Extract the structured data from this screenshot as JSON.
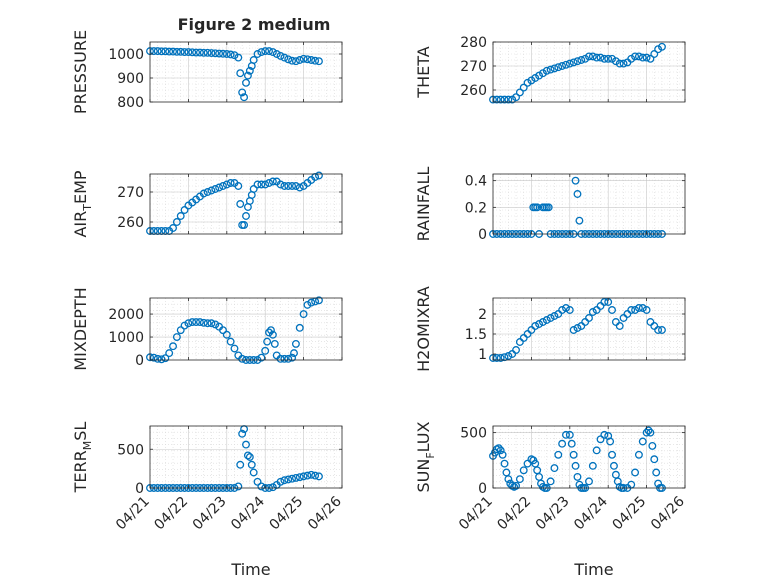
{
  "title": "Figure 2 medium",
  "xlabel": "Time",
  "x_tick_labels": [
    "04/21",
    "04/22",
    "04/23",
    "04/24",
    "04/25",
    "04/26"
  ],
  "marker_color": "#0072BD",
  "chart_data": [
    {
      "type": "scatter",
      "ylabel": "PRESSURE",
      "ylim": [
        800,
        1050
      ],
      "yticks": [
        800,
        900,
        1000
      ],
      "xlim": [
        0,
        5
      ],
      "grid": "major+minor",
      "x": [
        0.0,
        0.1,
        0.2,
        0.3,
        0.4,
        0.5,
        0.6,
        0.7,
        0.8,
        0.9,
        1.0,
        1.1,
        1.2,
        1.3,
        1.4,
        1.5,
        1.6,
        1.7,
        1.8,
        1.9,
        2.0,
        2.1,
        2.2,
        2.3,
        2.35,
        2.4,
        2.45,
        2.5,
        2.55,
        2.6,
        2.65,
        2.7,
        2.8,
        2.9,
        3.0,
        3.1,
        3.2,
        3.3,
        3.4,
        3.5,
        3.6,
        3.7,
        3.8,
        3.9,
        4.0,
        4.1,
        4.2,
        4.3,
        4.4
      ],
      "y": [
        1012,
        1012,
        1012,
        1011,
        1011,
        1010,
        1010,
        1009,
        1009,
        1008,
        1008,
        1007,
        1006,
        1006,
        1005,
        1005,
        1004,
        1003,
        1002,
        1001,
        1000,
        998,
        995,
        985,
        920,
        840,
        820,
        880,
        910,
        930,
        950,
        975,
        1000,
        1008,
        1012,
        1012,
        1008,
        1000,
        992,
        985,
        978,
        972,
        970,
        975,
        980,
        978,
        975,
        972,
        970
      ]
    },
    {
      "type": "scatter",
      "ylabel": "THETA",
      "ylim": [
        255,
        280
      ],
      "yticks": [
        260,
        270,
        280
      ],
      "xlim": [
        0,
        5
      ],
      "grid": "major+minor",
      "x": [
        0.0,
        0.1,
        0.2,
        0.3,
        0.4,
        0.5,
        0.6,
        0.7,
        0.8,
        0.9,
        1.0,
        1.1,
        1.2,
        1.3,
        1.4,
        1.5,
        1.6,
        1.7,
        1.8,
        1.9,
        2.0,
        2.1,
        2.2,
        2.3,
        2.4,
        2.5,
        2.6,
        2.7,
        2.8,
        2.9,
        3.0,
        3.1,
        3.2,
        3.3,
        3.4,
        3.5,
        3.6,
        3.7,
        3.8,
        3.9,
        4.0,
        4.1,
        4.2,
        4.3,
        4.4
      ],
      "y": [
        256,
        256,
        256,
        256,
        256,
        256,
        257,
        259,
        261,
        263,
        264,
        265,
        266,
        267,
        268,
        268.5,
        269,
        269.5,
        270,
        270.5,
        271,
        271.5,
        272,
        272.5,
        273,
        274,
        274,
        273.5,
        273.5,
        273,
        273,
        273,
        272,
        271,
        271,
        271.5,
        273,
        274,
        274,
        273.5,
        273.5,
        273,
        275,
        277,
        278
      ]
    },
    {
      "type": "scatter",
      "ylabel": "AIR_TEMP",
      "ylim": [
        256,
        276
      ],
      "yticks": [
        260,
        270
      ],
      "xlim": [
        0,
        5
      ],
      "grid": "major+minor",
      "x": [
        0.0,
        0.1,
        0.2,
        0.3,
        0.4,
        0.5,
        0.6,
        0.7,
        0.8,
        0.9,
        1.0,
        1.1,
        1.2,
        1.3,
        1.4,
        1.5,
        1.6,
        1.7,
        1.8,
        1.9,
        2.0,
        2.1,
        2.2,
        2.3,
        2.35,
        2.4,
        2.45,
        2.5,
        2.55,
        2.6,
        2.65,
        2.7,
        2.8,
        2.9,
        3.0,
        3.1,
        3.2,
        3.3,
        3.4,
        3.5,
        3.6,
        3.7,
        3.8,
        3.9,
        4.0,
        4.1,
        4.2,
        4.3,
        4.4
      ],
      "y": [
        257,
        257,
        257,
        257,
        257,
        257,
        258,
        260,
        262,
        264,
        265.5,
        266.5,
        267.5,
        268.5,
        269.5,
        270,
        270.5,
        271,
        271.5,
        272,
        272.5,
        273,
        273,
        272,
        266,
        259,
        259,
        262,
        265,
        267,
        269,
        271,
        272.5,
        272.5,
        272.5,
        273,
        273.5,
        273.5,
        272.5,
        272,
        272,
        272,
        272,
        271.5,
        272,
        273,
        274,
        275,
        275.5
      ]
    },
    {
      "type": "scatter",
      "ylabel": "RAINFALL",
      "ylim": [
        0,
        0.45
      ],
      "yticks": [
        0,
        0.2,
        0.4
      ],
      "xlim": [
        0,
        5
      ],
      "grid": "major+minor",
      "x": [
        0.0,
        0.1,
        0.2,
        0.3,
        0.4,
        0.5,
        0.6,
        0.7,
        0.8,
        0.9,
        1.0,
        1.05,
        1.1,
        1.15,
        1.2,
        1.3,
        1.35,
        1.4,
        1.45,
        1.5,
        1.6,
        1.7,
        1.8,
        1.9,
        2.0,
        2.1,
        2.15,
        2.2,
        2.25,
        2.3,
        2.4,
        2.5,
        2.6,
        2.7,
        2.8,
        2.9,
        3.0,
        3.1,
        3.2,
        3.3,
        3.4,
        3.5,
        3.6,
        3.7,
        3.8,
        3.9,
        4.0,
        4.1,
        4.2,
        4.3,
        4.4
      ],
      "y": [
        0,
        0,
        0,
        0,
        0,
        0,
        0,
        0,
        0,
        0,
        0,
        0.2,
        0.2,
        0.2,
        0,
        0.2,
        0.2,
        0.2,
        0.2,
        0,
        0,
        0,
        0,
        0,
        0,
        0,
        0.4,
        0.3,
        0.1,
        0,
        0,
        0,
        0,
        0,
        0,
        0,
        0,
        0,
        0,
        0,
        0,
        0,
        0,
        0,
        0,
        0,
        0,
        0,
        0,
        0,
        0
      ]
    },
    {
      "type": "scatter",
      "ylabel": "MIXDEPTH",
      "ylim": [
        0,
        2700
      ],
      "yticks": [
        0,
        1000,
        2000
      ],
      "xlim": [
        0,
        5
      ],
      "grid": "major+minor",
      "x": [
        0.0,
        0.1,
        0.2,
        0.3,
        0.4,
        0.5,
        0.6,
        0.7,
        0.8,
        0.9,
        1.0,
        1.1,
        1.2,
        1.3,
        1.4,
        1.5,
        1.6,
        1.7,
        1.8,
        1.9,
        2.0,
        2.1,
        2.2,
        2.3,
        2.4,
        2.5,
        2.6,
        2.7,
        2.8,
        2.9,
        3.0,
        3.05,
        3.1,
        3.15,
        3.2,
        3.25,
        3.3,
        3.4,
        3.5,
        3.6,
        3.7,
        3.75,
        3.8,
        3.9,
        4.0,
        4.1,
        4.2,
        4.3,
        4.4
      ],
      "y": [
        120,
        100,
        50,
        30,
        80,
        300,
        600,
        1000,
        1300,
        1500,
        1600,
        1650,
        1650,
        1650,
        1620,
        1600,
        1600,
        1550,
        1450,
        1300,
        1100,
        800,
        500,
        200,
        50,
        0,
        0,
        0,
        0,
        100,
        400,
        800,
        1200,
        1300,
        1100,
        700,
        200,
        50,
        50,
        50,
        100,
        300,
        700,
        1400,
        2000,
        2400,
        2500,
        2550,
        2600
      ]
    },
    {
      "type": "scatter",
      "ylabel": "H2OMIXRA",
      "ylim": [
        0.85,
        2.4
      ],
      "yticks": [
        1,
        1.5,
        2
      ],
      "xlim": [
        0,
        5
      ],
      "grid": "major+minor",
      "x": [
        0.0,
        0.1,
        0.2,
        0.3,
        0.4,
        0.5,
        0.6,
        0.7,
        0.8,
        0.9,
        1.0,
        1.1,
        1.2,
        1.3,
        1.4,
        1.5,
        1.6,
        1.7,
        1.8,
        1.9,
        2.0,
        2.1,
        2.2,
        2.3,
        2.4,
        2.5,
        2.6,
        2.7,
        2.8,
        2.9,
        3.0,
        3.1,
        3.2,
        3.3,
        3.4,
        3.5,
        3.6,
        3.7,
        3.8,
        3.9,
        4.0,
        4.1,
        4.2,
        4.3,
        4.4
      ],
      "y": [
        0.9,
        0.9,
        0.9,
        0.92,
        0.95,
        1.0,
        1.1,
        1.3,
        1.4,
        1.5,
        1.6,
        1.7,
        1.75,
        1.8,
        1.85,
        1.9,
        1.95,
        2.0,
        2.1,
        2.15,
        2.1,
        1.6,
        1.65,
        1.7,
        1.8,
        1.9,
        2.05,
        2.1,
        2.2,
        2.3,
        2.3,
        2.1,
        1.8,
        1.7,
        1.9,
        2.0,
        2.1,
        2.1,
        2.15,
        2.15,
        2.1,
        1.8,
        1.7,
        1.6,
        1.6
      ]
    },
    {
      "type": "scatter",
      "ylabel": "TERR_MSL",
      "ylim": [
        0,
        800
      ],
      "yticks": [
        0,
        500
      ],
      "xlim": [
        0,
        5
      ],
      "grid": "major+minor",
      "x": [
        0.0,
        0.1,
        0.2,
        0.3,
        0.4,
        0.5,
        0.6,
        0.7,
        0.8,
        0.9,
        1.0,
        1.1,
        1.2,
        1.3,
        1.4,
        1.5,
        1.6,
        1.7,
        1.8,
        1.9,
        2.0,
        2.1,
        2.2,
        2.3,
        2.35,
        2.4,
        2.45,
        2.5,
        2.55,
        2.6,
        2.65,
        2.7,
        2.8,
        2.9,
        3.0,
        3.1,
        3.2,
        3.3,
        3.4,
        3.5,
        3.6,
        3.7,
        3.8,
        3.9,
        4.0,
        4.1,
        4.2,
        4.3,
        4.4
      ],
      "y": [
        0,
        0,
        0,
        0,
        0,
        0,
        0,
        0,
        0,
        0,
        0,
        0,
        0,
        0,
        0,
        0,
        0,
        0,
        0,
        0,
        0,
        0,
        0,
        20,
        300,
        700,
        760,
        560,
        420,
        400,
        300,
        200,
        80,
        20,
        0,
        0,
        10,
        40,
        80,
        100,
        110,
        120,
        130,
        140,
        150,
        160,
        170,
        160,
        150
      ]
    },
    {
      "type": "scatter",
      "ylabel": "SUN_FLUX",
      "ylim": [
        0,
        560
      ],
      "yticks": [
        0,
        500
      ],
      "xlim": [
        0,
        5
      ],
      "grid": "major+minor",
      "x": [
        0.0,
        0.05,
        0.1,
        0.15,
        0.2,
        0.25,
        0.3,
        0.35,
        0.4,
        0.45,
        0.5,
        0.55,
        0.6,
        0.7,
        0.8,
        0.9,
        1.0,
        1.05,
        1.1,
        1.15,
        1.2,
        1.25,
        1.3,
        1.35,
        1.4,
        1.5,
        1.6,
        1.7,
        1.8,
        1.9,
        2.0,
        2.05,
        2.1,
        2.15,
        2.2,
        2.25,
        2.3,
        2.35,
        2.4,
        2.5,
        2.6,
        2.7,
        2.8,
        2.9,
        3.0,
        3.05,
        3.1,
        3.15,
        3.2,
        3.25,
        3.3,
        3.35,
        3.4,
        3.5,
        3.6,
        3.7,
        3.8,
        3.9,
        4.0,
        4.05,
        4.1,
        4.15,
        4.2,
        4.25,
        4.3,
        4.35,
        4.4
      ],
      "y": [
        290,
        320,
        350,
        360,
        340,
        300,
        220,
        140,
        80,
        40,
        20,
        10,
        20,
        80,
        160,
        220,
        260,
        250,
        220,
        160,
        100,
        40,
        10,
        0,
        0,
        60,
        180,
        300,
        400,
        480,
        480,
        400,
        300,
        200,
        100,
        30,
        0,
        0,
        0,
        60,
        200,
        340,
        440,
        480,
        470,
        420,
        300,
        200,
        120,
        60,
        10,
        0,
        0,
        0,
        30,
        140,
        300,
        420,
        500,
        520,
        500,
        380,
        260,
        140,
        40,
        0,
        0
      ]
    }
  ]
}
